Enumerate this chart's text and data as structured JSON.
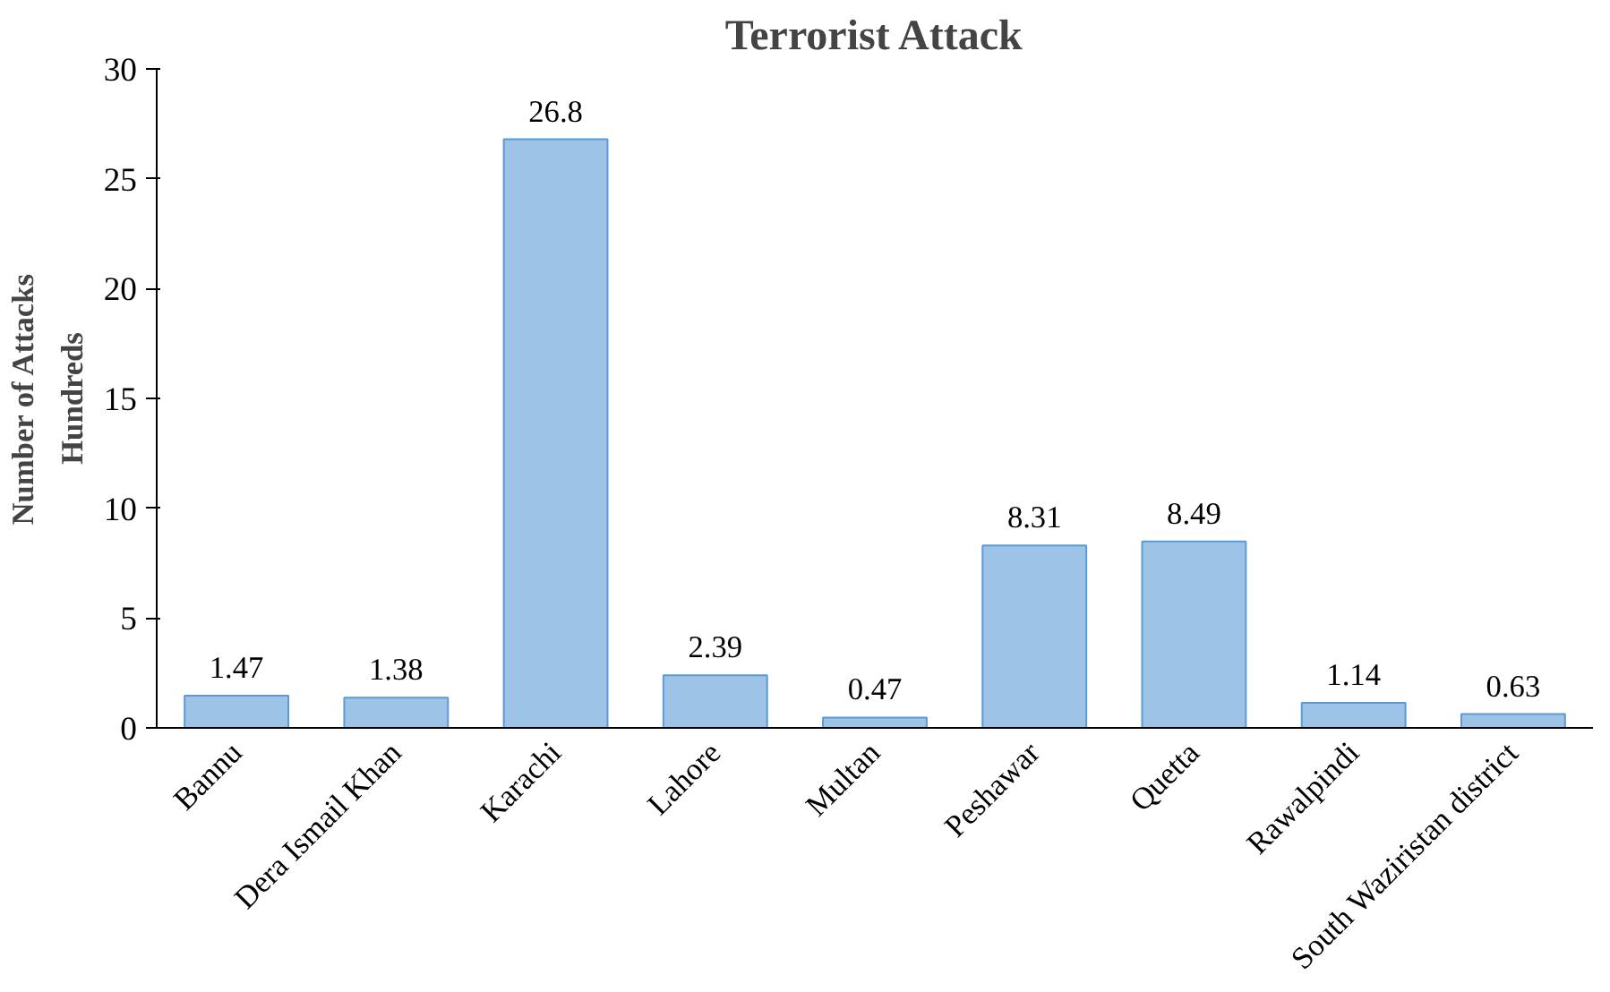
{
  "chart_data": {
    "type": "bar",
    "title": "Terrorist Attack",
    "ylabel": "Number of Attacks",
    "annotations": [
      "Hundreds"
    ],
    "categories": [
      "Bannu",
      "Dera Ismail Khan",
      "Karachi",
      "Lahore",
      "Multan",
      "Peshawar",
      "Quetta",
      "Rawalpindi",
      "South Waziristan district"
    ],
    "values": [
      1.47,
      1.38,
      26.8,
      2.39,
      0.47,
      8.31,
      8.49,
      1.14,
      0.63
    ],
    "color": "#9dc3e6",
    "ylim": [
      0,
      30
    ],
    "yticks": [
      0,
      5,
      10,
      15,
      20,
      25,
      30
    ],
    "grid": false,
    "data_labels": true
  }
}
